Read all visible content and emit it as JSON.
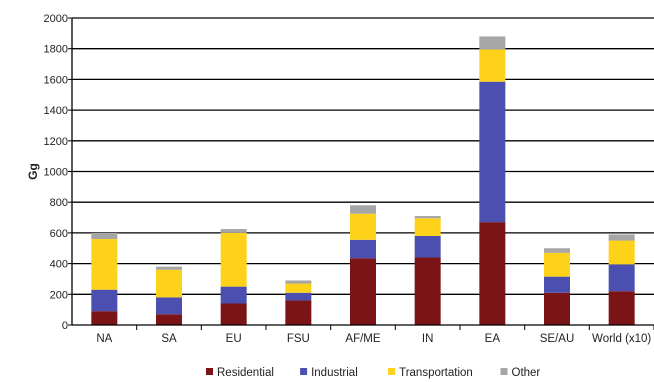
{
  "chart_data": {
    "type": "bar",
    "stacked": true,
    "ylabel": "Gg",
    "xlabel": "",
    "ylim": [
      0,
      2000
    ],
    "ytick_step": 200,
    "yticks": [
      "0",
      "200",
      "400",
      "600",
      "800",
      "1000",
      "1200",
      "1400",
      "1600",
      "1800",
      "2000"
    ],
    "grid": "horizontal",
    "legend_position": "bottom",
    "categories": [
      "NA",
      "SA",
      "EU",
      "FSU",
      "AF/ME",
      "IN",
      "EA",
      "SE/AU",
      "World (x10)"
    ],
    "series": [
      {
        "name": "Residential",
        "color": "#7b1416",
        "values": [
          90,
          70,
          140,
          160,
          435,
          440,
          670,
          210,
          220
        ]
      },
      {
        "name": "Industrial",
        "color": "#4a4fb0",
        "values": [
          140,
          110,
          110,
          50,
          120,
          140,
          915,
          105,
          175
        ]
      },
      {
        "name": "Transportation",
        "color": "#ffd21a",
        "values": [
          330,
          180,
          350,
          60,
          170,
          115,
          210,
          155,
          155
        ]
      },
      {
        "name": "Other",
        "color": "#a6a6a6",
        "values": [
          40,
          20,
          25,
          20,
          55,
          15,
          85,
          30,
          40
        ]
      }
    ]
  }
}
